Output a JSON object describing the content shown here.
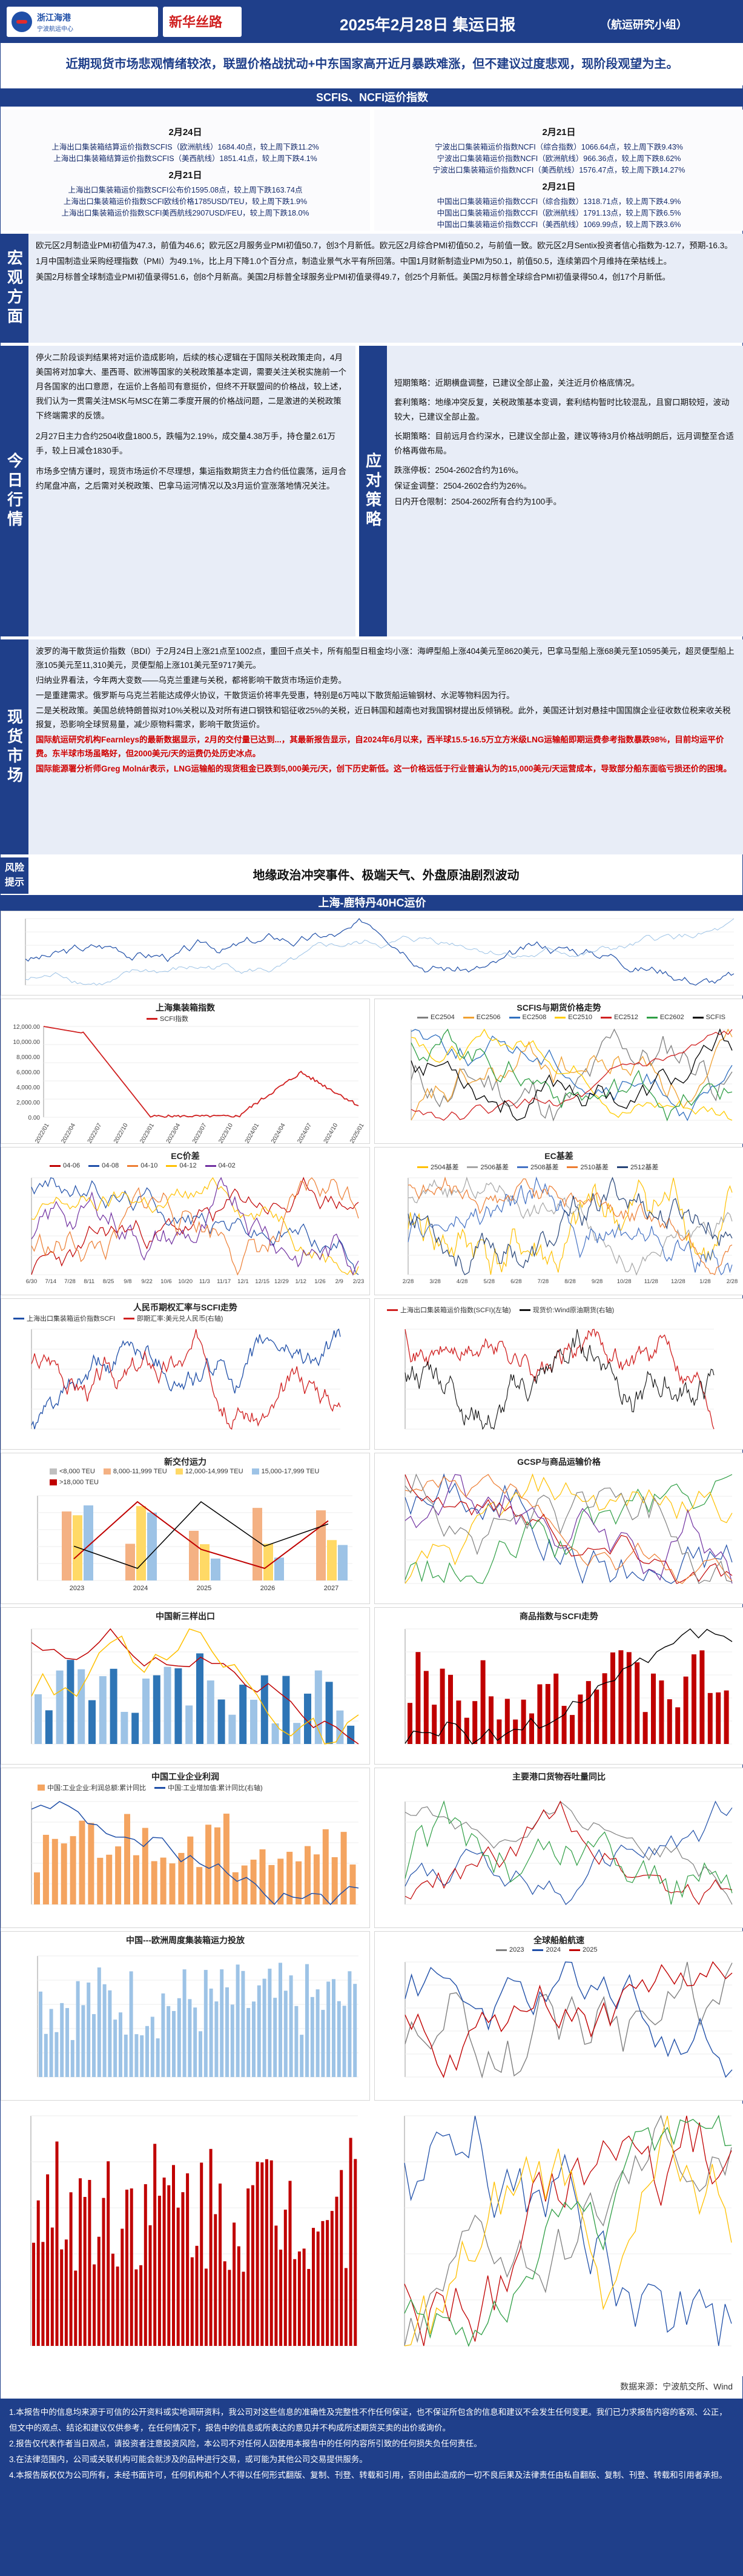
{
  "header": {
    "logo_a_name": "浙江海港",
    "logo_a_sub": "宁波航运中心",
    "logo_b_name": "新华丝路",
    "title": "2025年2月28日 集运日报",
    "team": "（航运研究小组）"
  },
  "headline": "近期现货市场悲观情绪较浓，联盟价格战扰动+中东国家高开近月暴跌难涨，但不建议过度悲观，现阶段观望为主。",
  "index_section": {
    "bar": "SCFIS、NCFI运价指数",
    "left": {
      "date1": "2月24日",
      "lines1": [
        "上海出口集装箱结算运价指数SCFIS（欧洲航线）1684.40点，较上周下跌11.2%",
        "上海出口集装箱结算运价指数SCFIS（美西航线）1851.41点，较上周下跌4.1%"
      ],
      "date2": "2月21日",
      "lines2": [
        "上海出口集装箱运价指数SCFI公布价1595.08点，较上周下跌163.74点",
        "上海出口集装箱运价指数SCFI欧线价格1785USD/TEU，较上周下跌1.9%",
        "上海出口集装箱运价指数SCFI美西航线2907USD/FEU，较上周下跌18.0%"
      ]
    },
    "right": {
      "date1": "2月21日",
      "lines1": [
        "宁波出口集装箱运价指数NCFI（综合指数）1066.64点，较上周下跌9.43%",
        "宁波出口集装箱运价指数NCFI（欧洲航线）966.36点，较上周下跌8.62%",
        "宁波出口集装箱运价指数NCFI（美西航线）1576.47点，较上周下跌14.27%"
      ],
      "date2": "2月21日",
      "lines2": [
        "中国出口集装箱运价指数CCFI（综合指数）1318.71点，较上周下跌4.9%",
        "中国出口集装箱运价指数CCFI（欧洲航线）1791.13点，较上周下跌6.5%",
        "中国出口集装箱运价指数CCFI（美西航线）1069.99点，较上周下跌3.6%"
      ]
    }
  },
  "macro": {
    "label": "宏观方面",
    "paras": [
      "欧元区2月制造业PMI初值为47.3，前值为46.6；欧元区2月服务业PMI初值50.7，创3个月新低。欧元区2月综合PMI初值50.2，与前值一致。欧元区2月Sentix投资者信心指数为-12.7，预期-16.3。",
      "1月中国制造业采购经理指数（PMI）为49.1%，比上月下降1.0个百分点，制造业景气水平有所回落。中国1月财新制造业PMI为50.1，前值50.5，连续第四个月维持在荣枯线上。",
      "美国2月标普全球制造业PMI初值录得51.6，创8个月新高。美国2月标普全球服务业PMI初值录得49.7，创25个月新低。美国2月标普全球综合PMI初值录得50.4，创17个月新低。"
    ]
  },
  "today": {
    "label": "今日行情",
    "paras": [
      "停火二阶段谈判结果将对运价造成影响，后续的核心逻辑在于国际关税政策走向，4月美国将对加拿大、墨西哥、欧洲等国家的关税政策基本定调，需要关注关税实施前一个月各国家的出口意愿，在运价上各船司有意挺价，但终不开联盟间的价格战，较上述，我们认为一贯需关注MSK与MSC在第二季度开展的价格战问题，二是激进的关税政策下终端需求的反馈。",
      "2月27日主力合约2504收盘1800.5，跌幅为2.19%，成交量4.38万手，持仓量2.61万手，较上日减仓1830手。",
      "市场多空情方谨时，现货市场运价不尽理想，集运指数期货主力合约低位震荡，运月合约尾盘冲高，之后需对关税政策、巴拿马运河情况以及3月运价宣涨落地情况关注。"
    ]
  },
  "strategy": {
    "label": "应对策略",
    "paras": [
      "短期策略：近期横盘调整，已建议全部止盈，关注近月价格底情况。",
      "套利策略：地缘冲突反复，关税政策基本变调，套利结构暂时比较混乱，且窗口期较短，波动较大，已建议全部止盈。",
      "长期策略：目前远月合约深水，已建议全部止盈，建议等待3月价格战明朗后，远月调整至合适价格再做布局。",
      "跌涨停板：2504-2602合约为16%。",
      "保证金调整：2504-2602合约为26%。",
      "日内开仓限制：2504-2602所有合约为100手。"
    ]
  },
  "spot": {
    "label": "现货市场",
    "paras": [
      "波罗的海干散货运价指数（BDI）于2月24日上涨21点至1002点，重回千点关卡，所有船型日租金均小涨：海岬型船上涨404美元至8620美元，巴拿马型船上涨68美元至10595美元，超灵便型船上涨105美元至11,310美元，灵便型船上涨101美元至9717美元。",
      "归纳业界看法，今年两大变数——乌克兰重建与关税，都将影响干散货市场运价走势。",
      "一是重建需求。俄罗斯与乌克兰若能达成停火协议，干散货运价将率先受惠，特别是6万吨以下散货船运输钢材、水泥等物料因为行。",
      "二是关税政策。美国总统特朗普拟对10%关税以及对所有进口钢铁和铝征收25%的关税，近日韩国和越南也对我国钢材提出反倾销税。此外，美国还计划对悬挂中国国旗企业征收数位税来收关税报复，恐影响全球贸易量，减少原物料需求，影响干散货运价。"
    ],
    "red_paras": [
      "国际航运研究机构Fearnleys的最新数据显示，2月的交付量已达到...，其最新报告显示，自2024年6月以来，西半球15.5-16.5万立方米级LNG运输船即期运费参考指数暴跌98%，目前均运平价费。东半球市场虽略好，但2000美元/天的运费仍处历史冰点。",
      "国际能源署分析师Greg Molnár表示，LNG运输船的现货租金已跌到5,000美元/天，创下历史新低。这一价格远低于行业普遍认为的15,000美元/天运营成本，导致部分船东面临亏损还价的困境。"
    ]
  },
  "risk": {
    "label_1": "风险",
    "label_2": "提示",
    "text": "地缘政治冲突事件、极端天气、外盘原油剧烈波动"
  },
  "wide_chart": {
    "bar": "上海-鹿特丹40HC运价"
  },
  "charts": {
    "container_index": {
      "title": "上海集装箱指数",
      "legend": "SCFI指数",
      "y_labels": [
        "12,000.00",
        "10,000.00",
        "8,000.00",
        "6,000.00",
        "4,000.00",
        "2,000.00",
        "0.00"
      ],
      "x_labels": [
        "2022/01",
        "2022/04",
        "2022/07",
        "2022/10",
        "2023/01",
        "2023/04",
        "2023/07",
        "2023/10",
        "2024/01",
        "2024/04",
        "2024/07",
        "2024/10",
        "2025/01"
      ]
    },
    "scfis": {
      "title": "SCFIS与期货价格走势",
      "legend": [
        "EC2504",
        "EC2506",
        "EC2508",
        "EC2510",
        "EC2512",
        "EC2602",
        "SCFIS"
      ],
      "colors": [
        "#7f7f7f",
        "#f0a030",
        "#3070c0",
        "#ffcc00",
        "#d02020",
        "#2e9e44",
        "#000000"
      ]
    },
    "ec_curve": {
      "title": "EC价差",
      "legend": [
        "04-06",
        "04-08",
        "04-10",
        "04-12",
        "04-02"
      ],
      "colors": [
        "#c00000",
        "#1f4fa8",
        "#ed7d31",
        "#ffc000",
        "#7030a0"
      ],
      "x_labels": [
        "6/30",
        "7/14",
        "7/28",
        "8/11",
        "8/25",
        "9/8",
        "9/22",
        "10/6",
        "10/20",
        "11/3",
        "11/17",
        "12/1",
        "12/15",
        "12/29",
        "1/12",
        "1/26",
        "2/9",
        "2/23"
      ]
    },
    "ec_basis": {
      "title": "EC基差",
      "legend": [
        "2504基差",
        "2506基差",
        "2508基差",
        "2510基差",
        "2512基差"
      ],
      "colors": [
        "#ffc000",
        "#a5a5a5",
        "#4472c4",
        "#ed7d31",
        "#264478"
      ],
      "x_labels": [
        "2/28",
        "3/28",
        "4/28",
        "5/28",
        "6/28",
        "7/28",
        "8/28",
        "9/28",
        "10/28",
        "11/28",
        "12/28",
        "1/28",
        "2/28"
      ]
    },
    "rmb": {
      "title": "人民币期权汇率与SCFI走势",
      "legend": [
        "上海出口集装箱运价指数SCFI",
        "即期汇率:美元兑人民币(右轴)"
      ]
    },
    "spot_oil": {
      "title": "",
      "legend": [
        "上海出口集装箱运价指数(SCFI)(左轴)",
        "现货价:Wind原油期货(右轴)"
      ]
    },
    "newbuild": {
      "title": "新交付运力",
      "legend": [
        "<8,000 TEU",
        "8,000-11,999 TEU",
        "12,000-14,999 TEU",
        "15,000-17,999 TEU",
        ">18,000 TEU"
      ],
      "years": [
        "2023",
        "2024",
        "2025",
        "2026",
        "2027"
      ]
    },
    "gcsp": {
      "title": "GCSP与商品运输价格"
    },
    "commodity": {
      "title": "商品指数与SCFI走势"
    },
    "china_tri": {
      "title": "中国新三样出口"
    },
    "port": {
      "title": "港口集装箱吞吐量"
    },
    "industry": {
      "title": "中国工业企业利润",
      "legend": [
        "中国:工业企业:利润总额:累计同比",
        "中国:工业增加值:累计同比(右轴)"
      ]
    },
    "mainport": {
      "title": "主要港口货物吞吐量同比"
    },
    "eu_freq": {
      "title": "中国---欧洲周度集装箱运力投放"
    },
    "global_ships": {
      "title": "全球船舶航速",
      "legend": [
        "2023",
        "2024",
        "2025"
      ]
    }
  },
  "source": "数据来源：宁波航交所、Wind",
  "disclaimer": [
    "1.本报告中的信息均来源于可信的公开资料或实地调研资料，我公司对这些信息的准确性及完整性不作任何保证，也不保证所包含的信息和建议不会发生任何变更。我们已力求报告内容的客观、公正，但文中的观点、结论和建议仅供参考，在任何情况下，报告中的信息或所表达的意见并不构成所述期货买卖的出价或询价。",
    "2.报告仅代表作者当日观点，请投资者注意投资风险，本公司不对任何人因使用本报告中的任何内容所引致的任何损失负任何责任。",
    "3.在法律范围内，公司或关联机构可能会就涉及的品种进行交易，或可能为其他公司交易提供服务。",
    "4.本报告版权仅为公司所有，未经书面许可，任何机构和个人不得以任何形式翻版、复制、刊登、转载和引用，否则由此造成的一切不良后果及法律责任由私自翻版、复制、刊登、转载和引用者承担。"
  ]
}
